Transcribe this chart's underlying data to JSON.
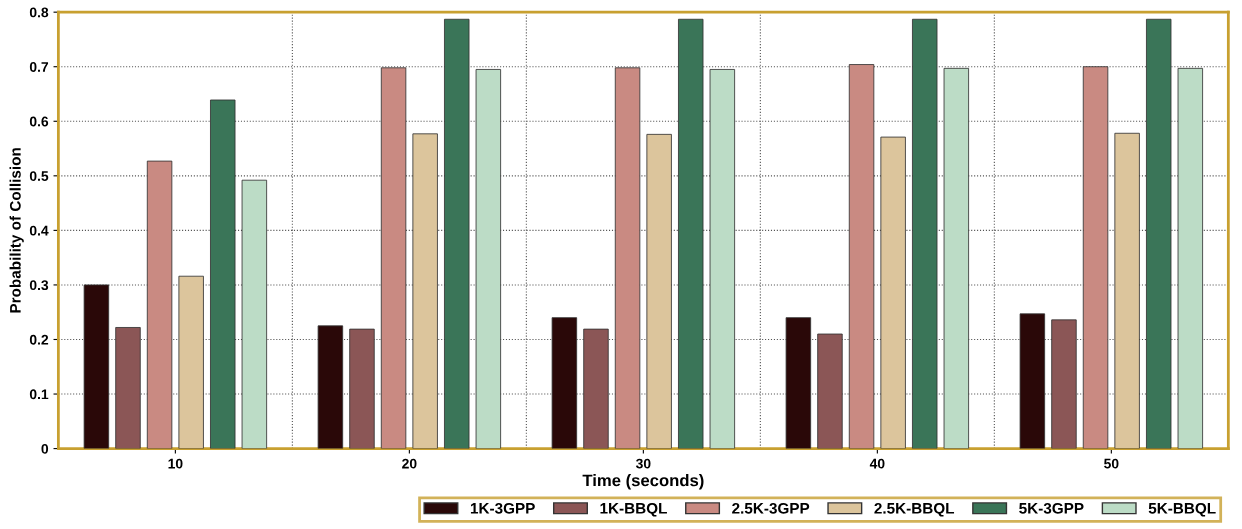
{
  "chart_data": {
    "type": "bar",
    "xlabel": "Time (seconds)",
    "ylabel": "Probability of Collision",
    "categories": [
      "10",
      "20",
      "30",
      "40",
      "50"
    ],
    "series": [
      {
        "name": "1K-3GPP",
        "color": "#2a0808",
        "values": [
          0.3,
          0.225,
          0.24,
          0.24,
          0.247
        ]
      },
      {
        "name": "1K-BBQL",
        "color": "#8b5656",
        "values": [
          0.222,
          0.219,
          0.219,
          0.21,
          0.236
        ]
      },
      {
        "name": "2.5K-3GPP",
        "color": "#c98a82",
        "values": [
          0.527,
          0.698,
          0.698,
          0.704,
          0.7
        ]
      },
      {
        "name": "2.5K-BBQL",
        "color": "#dcc59c",
        "values": [
          0.316,
          0.577,
          0.576,
          0.571,
          0.578
        ]
      },
      {
        "name": "5K-3GPP",
        "color": "#3a7558",
        "values": [
          0.639,
          0.787,
          0.787,
          0.787,
          0.787
        ]
      },
      {
        "name": "5K-BBQL",
        "color": "#bcdcc6",
        "values": [
          0.492,
          0.695,
          0.695,
          0.697,
          0.697
        ]
      }
    ],
    "ylim": [
      0,
      0.8
    ],
    "yticks": [
      0,
      0.1,
      0.2,
      0.3,
      0.4,
      0.5,
      0.6,
      0.7,
      0.8
    ],
    "grid": true,
    "legend": "bottom right"
  }
}
